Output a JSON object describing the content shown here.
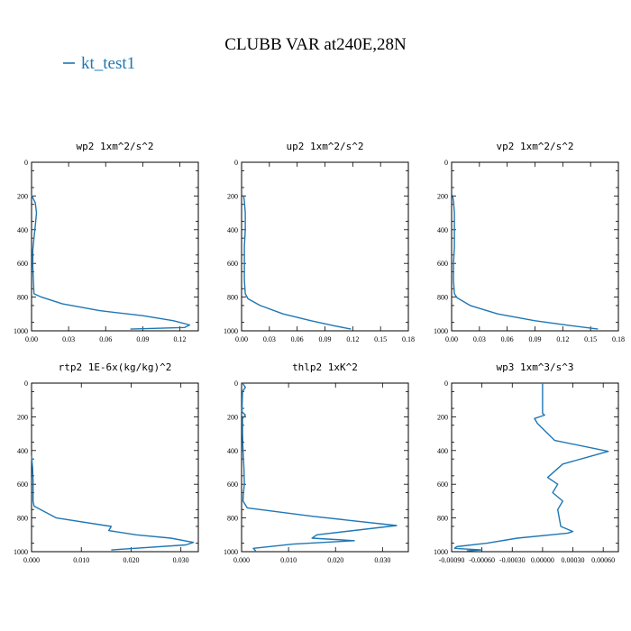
{
  "figure": {
    "title": "CLUBB VAR at240E,28N",
    "legend": [
      {
        "label": "kt_test1",
        "color": "#1f77b4"
      }
    ]
  },
  "chart_data": [
    {
      "type": "line",
      "title": "wp2  1xm^2/s^2",
      "xlim": [
        0,
        0.135
      ],
      "ylim": [
        1000,
        0
      ],
      "xticks": [
        "0.00",
        "0.03",
        "0.06",
        "0.09",
        "0.12"
      ],
      "yticks": [
        "0",
        "200",
        "400",
        "600",
        "800",
        "1000"
      ],
      "series": [
        {
          "name": "kt_test1",
          "x": [
            0.0,
            0.001,
            0.003,
            0.004,
            0.003,
            0.002,
            0.001,
            0.001,
            0.002,
            0.008,
            0.025,
            0.055,
            0.09,
            0.115,
            0.128,
            0.124,
            0.08
          ],
          "y": [
            195,
            210,
            240,
            300,
            380,
            450,
            520,
            620,
            780,
            800,
            840,
            880,
            910,
            940,
            965,
            980,
            990
          ]
        }
      ]
    },
    {
      "type": "line",
      "title": "up2  1xm^2/s^2",
      "xlim": [
        0,
        0.18
      ],
      "ylim": [
        1000,
        0
      ],
      "xticks": [
        "0.00",
        "0.03",
        "0.06",
        "0.09",
        "0.12",
        "0.15",
        "0.18"
      ],
      "yticks": [
        "0",
        "200",
        "400",
        "600",
        "800",
        "1000"
      ],
      "series": [
        {
          "name": "kt_test1",
          "x": [
            0.002,
            0.003,
            0.004,
            0.004,
            0.003,
            0.003,
            0.003,
            0.004,
            0.007,
            0.02,
            0.045,
            0.075,
            0.1,
            0.118
          ],
          "y": [
            195,
            230,
            300,
            400,
            500,
            600,
            700,
            780,
            810,
            850,
            900,
            940,
            970,
            990
          ]
        }
      ]
    },
    {
      "type": "line",
      "title": "vp2  1xm^2/s^2",
      "xlim": [
        0,
        0.18
      ],
      "ylim": [
        1000,
        0
      ],
      "xticks": [
        "0.00",
        "0.03",
        "0.06",
        "0.09",
        "0.12",
        "0.15",
        "0.18"
      ],
      "yticks": [
        "0",
        "200",
        "400",
        "600",
        "800",
        "1000"
      ],
      "series": [
        {
          "name": "kt_test1",
          "x": [
            0.001,
            0.002,
            0.003,
            0.003,
            0.003,
            0.002,
            0.002,
            0.003,
            0.006,
            0.02,
            0.05,
            0.09,
            0.13,
            0.158
          ],
          "y": [
            195,
            230,
            300,
            400,
            500,
            600,
            700,
            780,
            805,
            850,
            900,
            940,
            970,
            990
          ]
        }
      ]
    },
    {
      "type": "line",
      "title": "rtp2  1E-6x(kg/kg)^2",
      "xlim": [
        0,
        0.0335
      ],
      "ylim": [
        1000,
        0
      ],
      "xticks": [
        "0.000",
        "0.010",
        "0.020",
        "0.030"
      ],
      "yticks": [
        "0",
        "200",
        "400",
        "600",
        "800",
        "1000"
      ],
      "series": [
        {
          "name": "kt_test1",
          "x": [
            0.0,
            0.0002,
            0.0003,
            0.0003,
            0.0003,
            0.0005,
            0.005,
            0.016,
            0.0155,
            0.021,
            0.028,
            0.0325,
            0.031,
            0.016
          ],
          "y": [
            430,
            500,
            580,
            660,
            700,
            730,
            800,
            850,
            875,
            900,
            920,
            945,
            960,
            990
          ]
        }
      ]
    },
    {
      "type": "line",
      "title": "thlp2  1xK^2",
      "xlim": [
        0,
        0.0355
      ],
      "ylim": [
        1000,
        0
      ],
      "xticks": [
        "0.000",
        "0.010",
        "0.020",
        "0.030"
      ],
      "yticks": [
        "0",
        "200",
        "400",
        "600",
        "800",
        "1000"
      ],
      "series": [
        {
          "name": "kt_test1",
          "x": [
            0.0002,
            0.0008,
            0.0002,
            0.0001,
            0.0008,
            0.0002,
            0.0002,
            0.0003,
            0.0005,
            0.0006,
            0.0004,
            0.0003,
            0.0012,
            0.015,
            0.033,
            0.016,
            0.015,
            0.024,
            0.011,
            0.0025,
            0.003
          ],
          "y": [
            0,
            25,
            50,
            170,
            190,
            210,
            300,
            400,
            500,
            600,
            650,
            700,
            740,
            790,
            845,
            900,
            920,
            935,
            955,
            980,
            995
          ]
        }
      ]
    },
    {
      "type": "line",
      "title": "wp3  1xm^3/s^3",
      "xlim": [
        -0.0009,
        0.00075
      ],
      "ylim": [
        1000,
        0
      ],
      "xticks": [
        "-0.00090",
        "-0.00060",
        "-0.00030",
        "0.00000",
        "0.00030",
        "0.00060"
      ],
      "yticks": [
        "0",
        "200",
        "400",
        "600",
        "800",
        "1000"
      ],
      "series": [
        {
          "name": "kt_test1",
          "x": [
            0.0,
            0.0,
            2e-05,
            -8e-05,
            -5e-05,
            0.00012,
            0.00065,
            0.0002,
            5e-05,
            0.00015,
            0.0001,
            0.0002,
            0.00015,
            0.00018,
            0.0003,
            0.00025,
            -0.00025,
            -0.00055,
            -0.00085,
            -0.00087,
            -0.0006,
            -0.00075
          ],
          "y": [
            0,
            180,
            190,
            210,
            240,
            340,
            405,
            480,
            560,
            600,
            650,
            700,
            750,
            850,
            880,
            890,
            920,
            950,
            970,
            980,
            990,
            995
          ]
        }
      ]
    }
  ]
}
